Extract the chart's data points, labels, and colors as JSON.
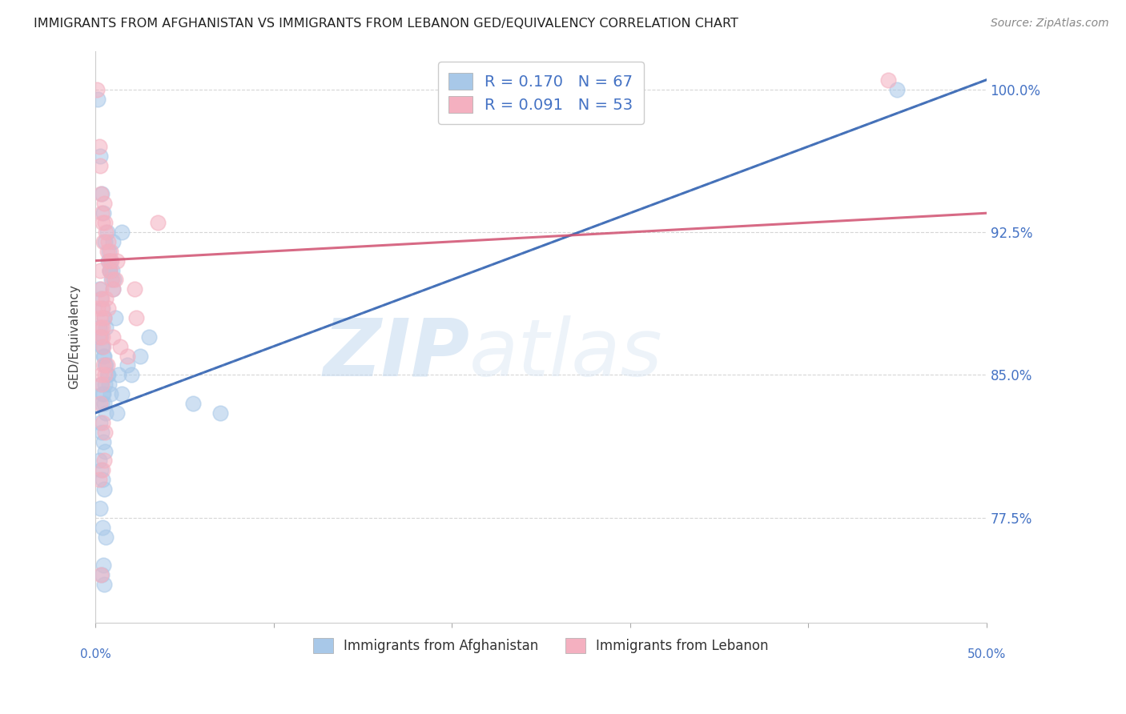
{
  "title": "IMMIGRANTS FROM AFGHANISTAN VS IMMIGRANTS FROM LEBANON GED/EQUIVALENCY CORRELATION CHART",
  "source": "Source: ZipAtlas.com",
  "ylabel": "GED/Equivalency",
  "yticks": [
    100.0,
    92.5,
    85.0,
    77.5
  ],
  "ytick_labels": [
    "100.0%",
    "92.5%",
    "85.0%",
    "77.5%"
  ],
  "xmin": 0.0,
  "xmax": 50.0,
  "ymin": 72.0,
  "ymax": 102.0,
  "R_afghanistan": 0.17,
  "N_afghanistan": 67,
  "R_lebanon": 0.091,
  "N_lebanon": 53,
  "color_afghanistan": "#a8c8e8",
  "color_lebanon": "#f4b0c0",
  "color_trend_afghanistan_dashed": "#a8c8e8",
  "color_trend_afghanistan_solid": "#3060b0",
  "color_trend_lebanon": "#d05070",
  "color_axis_labels": "#4472c4",
  "color_title": "#222222",
  "watermark_zip": "ZIP",
  "watermark_atlas": "atlas",
  "legend_label_afghanistan": "Immigrants from Afghanistan",
  "legend_label_lebanon": "Immigrants from Lebanon",
  "trend_af_x0": 0.0,
  "trend_af_y0": 83.0,
  "trend_af_x1": 50.0,
  "trend_af_y1": 100.5,
  "trend_lb_x0": 0.0,
  "trend_lb_y0": 91.0,
  "trend_lb_x1": 50.0,
  "trend_lb_y1": 93.5,
  "afghanistan_x": [
    0.15,
    0.25,
    0.35,
    0.45,
    0.55,
    0.65,
    0.75,
    0.85,
    0.95,
    1.05,
    0.2,
    0.3,
    0.4,
    0.5,
    0.6,
    0.7,
    0.8,
    0.9,
    1.0,
    1.1,
    0.25,
    0.35,
    0.45,
    0.55,
    0.65,
    0.75,
    0.85,
    0.2,
    0.3,
    0.4,
    0.5,
    0.6,
    0.7,
    0.3,
    0.4,
    0.5,
    0.6,
    0.25,
    0.35,
    0.45,
    0.55,
    0.2,
    0.3,
    0.4,
    0.5,
    1.2,
    1.5,
    2.0,
    2.5,
    3.0,
    0.35,
    0.45,
    0.55,
    1.3,
    1.8,
    0.25,
    0.4,
    0.6,
    0.35,
    0.5,
    0.45,
    5.5,
    7.0,
    0.8,
    1.0,
    1.5,
    45.0
  ],
  "afghanistan_y": [
    99.5,
    96.5,
    94.5,
    93.5,
    92.0,
    92.5,
    91.5,
    91.0,
    90.5,
    90.0,
    89.5,
    89.0,
    88.5,
    88.0,
    87.5,
    91.0,
    90.5,
    90.0,
    89.5,
    88.0,
    87.0,
    86.5,
    86.0,
    85.5,
    85.0,
    84.5,
    84.0,
    87.5,
    87.0,
    86.5,
    86.0,
    85.5,
    85.0,
    84.5,
    84.0,
    83.5,
    83.0,
    82.5,
    82.0,
    81.5,
    81.0,
    80.5,
    80.0,
    79.5,
    79.0,
    83.0,
    84.0,
    85.0,
    86.0,
    87.0,
    83.5,
    84.0,
    84.5,
    85.0,
    85.5,
    78.0,
    77.0,
    76.5,
    74.5,
    74.0,
    75.0,
    83.5,
    83.0,
    90.5,
    92.0,
    92.5,
    100.0
  ],
  "lebanon_x": [
    0.1,
    0.2,
    0.25,
    0.3,
    0.35,
    0.4,
    0.45,
    0.5,
    0.55,
    0.6,
    0.65,
    0.7,
    0.75,
    0.8,
    0.85,
    0.9,
    0.95,
    1.0,
    1.1,
    1.2,
    0.15,
    0.25,
    0.3,
    0.2,
    0.35,
    0.4,
    0.45,
    0.25,
    0.3,
    0.35,
    0.5,
    0.4,
    2.2,
    2.3,
    0.6,
    0.7,
    0.3,
    0.35,
    0.45,
    1.0,
    1.4,
    1.8,
    0.28,
    0.38,
    0.48,
    0.22,
    0.32,
    0.55,
    0.65,
    3.5,
    0.42,
    0.52,
    44.5
  ],
  "lebanon_y": [
    100.0,
    97.0,
    96.0,
    94.5,
    93.5,
    93.0,
    92.0,
    94.0,
    93.0,
    92.5,
    91.5,
    92.0,
    91.0,
    90.5,
    91.5,
    91.0,
    90.0,
    89.5,
    90.0,
    91.0,
    88.5,
    88.0,
    87.5,
    87.0,
    88.5,
    87.5,
    86.5,
    90.5,
    89.5,
    89.0,
    88.0,
    87.0,
    89.5,
    88.0,
    89.0,
    88.5,
    85.0,
    84.5,
    85.5,
    87.0,
    86.5,
    86.0,
    83.5,
    82.5,
    80.5,
    79.5,
    74.5,
    85.0,
    85.5,
    93.0,
    80.0,
    82.0,
    100.5
  ]
}
